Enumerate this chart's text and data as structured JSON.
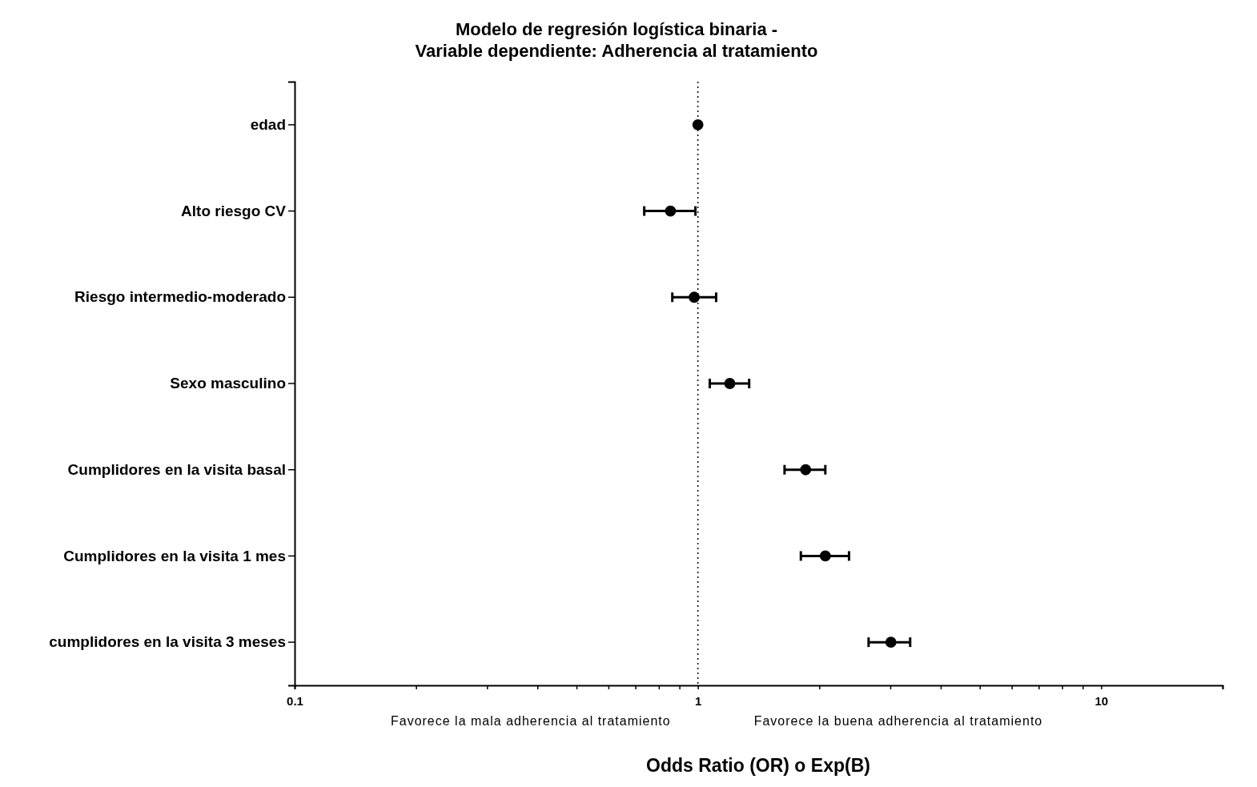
{
  "chart_data": {
    "type": "scatter",
    "orientation": "horizontal",
    "title": "Modelo de regresión logística binaria -\nVariable dependiente: Adherencia al tratamiento",
    "xlabel": "Odds Ratio (OR) o Exp(B)",
    "categories": [
      "edad",
      "Alto riesgo CV",
      "Riesgo intermedio-moderado",
      "Sexo masculino",
      "Cumplidores en la visita basal",
      "Cumplidores en la visita 1 mes",
      "cumplidores en la visita 3 meses"
    ],
    "series": [
      {
        "color": "#000000",
        "values": [
          1.0,
          0.855,
          0.979,
          1.2,
          1.85,
          2.07,
          3.01
        ],
        "errors": [
          null,
          [
            0.736,
            0.986
          ],
          [
            0.864,
            1.11
          ],
          [
            1.07,
            1.34
          ],
          [
            1.64,
            2.07
          ],
          [
            1.8,
            2.37
          ],
          [
            2.65,
            3.36
          ]
        ]
      }
    ],
    "log": "x",
    "xlim": [
      0.1,
      20
    ],
    "xticks": [
      0.1,
      {
        "value": 0.2,
        "label": null
      },
      {
        "value": 0.3,
        "label": null
      },
      {
        "value": 0.4,
        "label": null
      },
      {
        "value": 0.5,
        "label": null
      },
      {
        "value": 0.6,
        "label": null
      },
      {
        "value": 0.7,
        "label": null
      },
      {
        "value": 0.8,
        "label": null
      },
      {
        "value": 0.9,
        "label": null
      },
      1,
      {
        "value": 2,
        "label": null
      },
      {
        "value": 3,
        "label": null
      },
      {
        "value": 4,
        "label": null
      },
      {
        "value": 5,
        "label": null
      },
      {
        "value": 6,
        "label": null
      },
      {
        "value": 7,
        "label": null
      },
      {
        "value": 8,
        "label": null
      },
      {
        "value": 9,
        "label": null
      },
      10,
      {
        "value": 20,
        "label": null
      }
    ],
    "ref_lines": [
      {
        "axis": "x",
        "value": 1,
        "line_style": "dotted",
        "color": "#000000"
      }
    ],
    "annotations": [
      "Favorece la mala adherencia al tratamiento",
      "Favorece la buena adherencia al tratamiento"
    ],
    "marker": "circle",
    "grid": false
  }
}
